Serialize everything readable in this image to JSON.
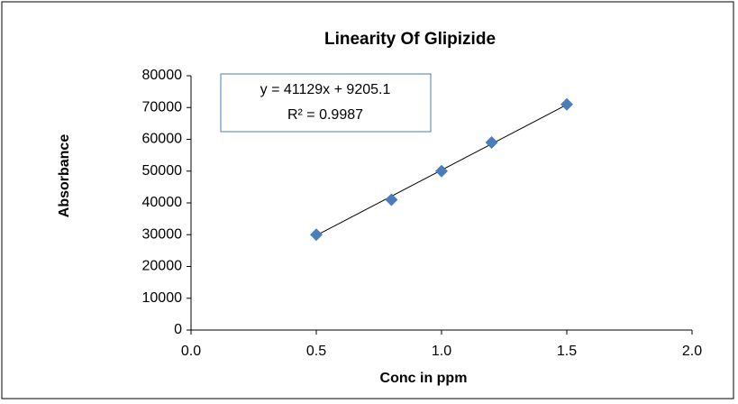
{
  "chart_data": {
    "type": "scatter",
    "title": "Linearity Of Glipizide",
    "xlabel": "Conc in ppm",
    "ylabel": "Absorbance",
    "series": [
      {
        "name": "Absorbance",
        "color": "#4a7ebb",
        "x": [
          0.5,
          0.8,
          1.0,
          1.2,
          1.5
        ],
        "values": [
          30000,
          41000,
          50000,
          59000,
          71000
        ]
      }
    ],
    "trendline": {
      "slope": 41129,
      "intercept": 9205.1,
      "equation": "y = 41129x + 9205.1",
      "r2": "R² = 0.9987",
      "color": "#000000"
    },
    "xlim": [
      0,
      2
    ],
    "xticks": [
      {
        "value": 0,
        "label": "0.0"
      },
      0.5,
      {
        "value": 1,
        "label": "1.0"
      },
      1.5,
      {
        "value": 2,
        "label": "2.0"
      }
    ],
    "ylim": [
      0,
      80000
    ],
    "yticks": [
      0,
      10000,
      20000,
      30000,
      40000,
      50000,
      60000,
      70000,
      80000
    ],
    "grid": false
  }
}
